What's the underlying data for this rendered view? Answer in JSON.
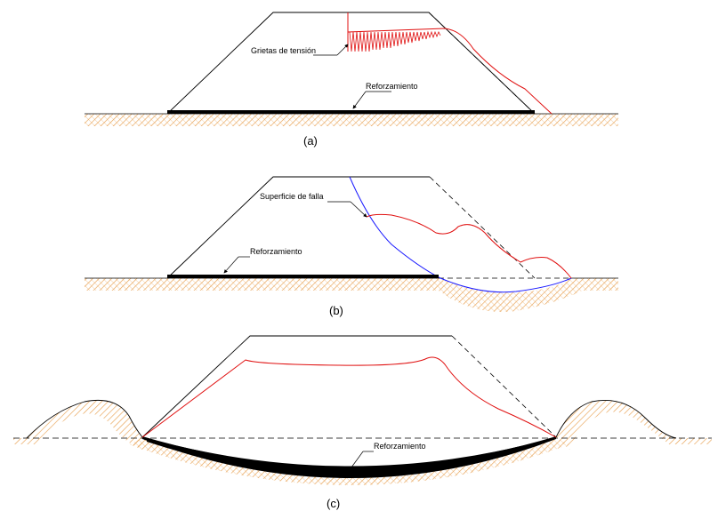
{
  "figure": {
    "panel_a": {
      "caption": "(a)",
      "label_cracks": "Grietas de tensión",
      "label_reinforcement": "Reforzamiento"
    },
    "panel_b": {
      "caption": "(b)",
      "label_failure_surface": "Superficie de falla",
      "label_reinforcement": "Reforzamiento"
    },
    "panel_c": {
      "caption": "(c)",
      "label_reinforcement": "Reforzamiento"
    },
    "colors": {
      "outline": "#000000",
      "deformed_profile": "#e01010",
      "failure_surface": "#1a1aff",
      "soil_hatch": "#e8a050",
      "reinforcement": "#000000"
    }
  }
}
